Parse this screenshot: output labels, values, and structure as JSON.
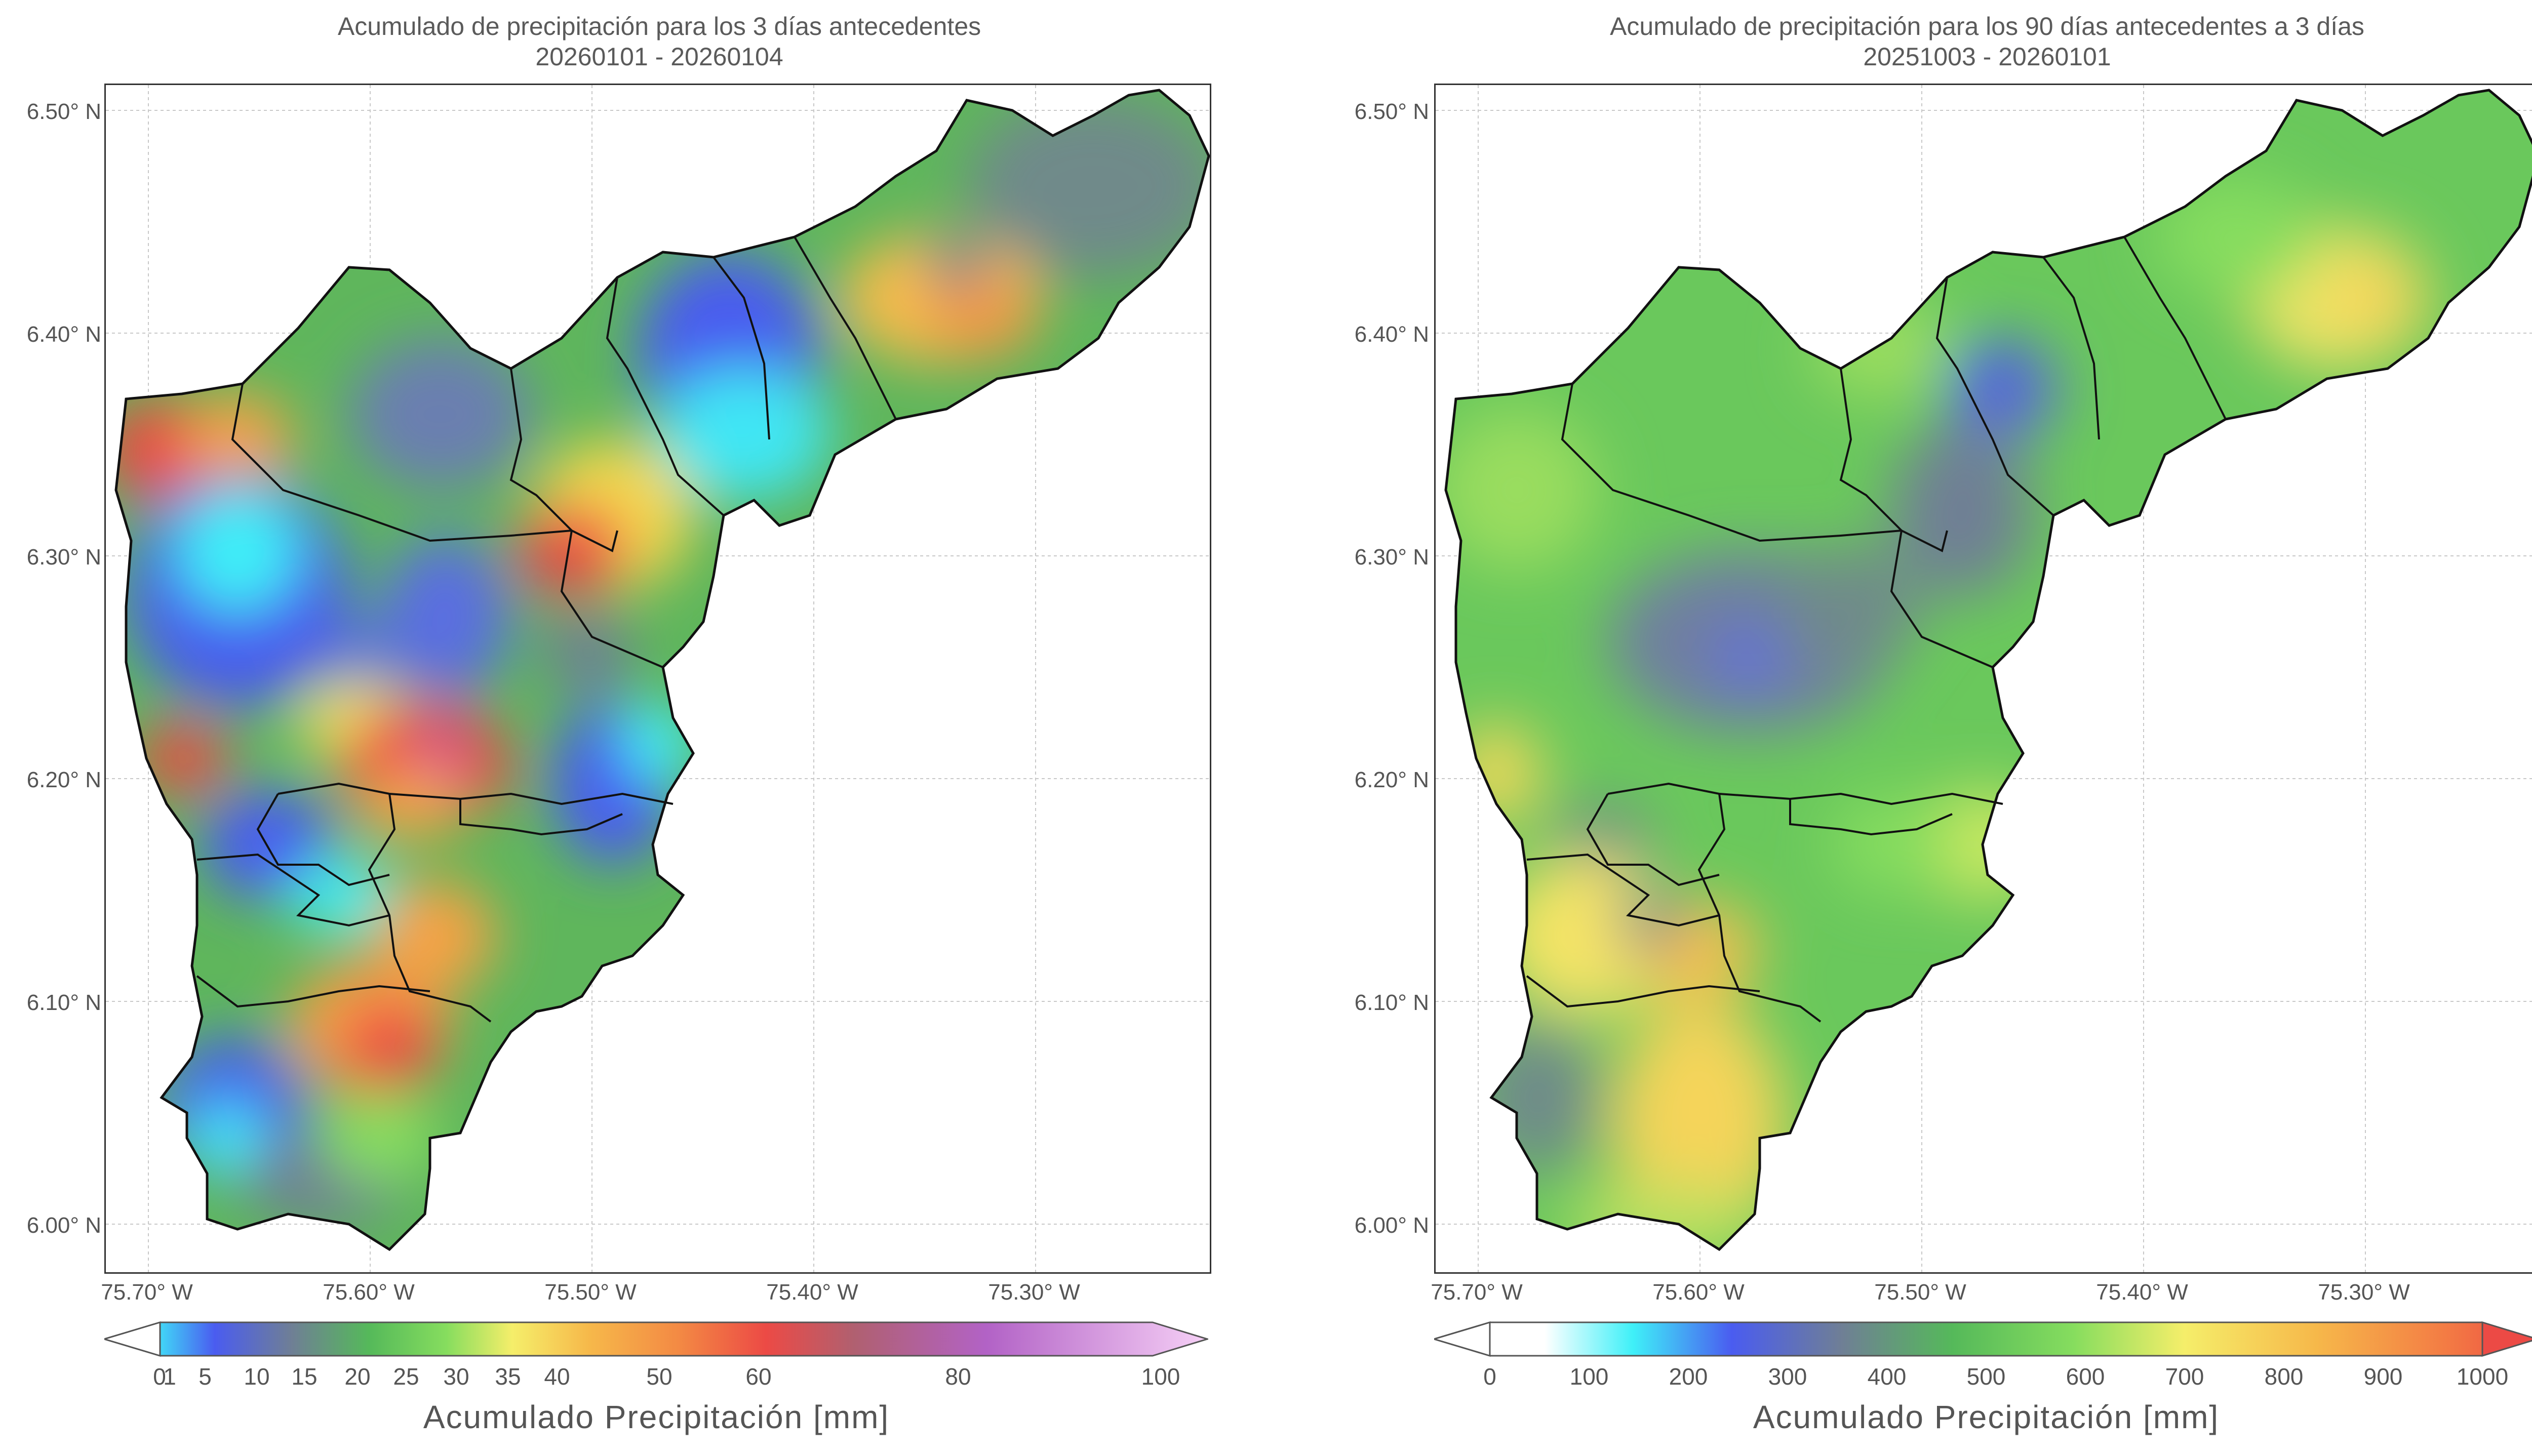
{
  "left": {
    "title_line1": "Acumulado de precipitación para los 3 días antecedentes",
    "title_line2": "20260101 - 20260104",
    "lat_labels": [
      "6.50° N",
      "6.40° N",
      "6.30° N",
      "6.20° N",
      "6.10° N",
      "6.00° N"
    ],
    "lon_labels": [
      "75.70° W",
      "75.60° W",
      "75.50° W",
      "75.40° W",
      "75.30° W"
    ],
    "colorbar": {
      "ticks": [
        "0",
        "1",
        "5",
        "10",
        "15",
        "20",
        "25",
        "30",
        "35",
        "40",
        "50",
        "60",
        "80",
        "100"
      ],
      "label": "Acumulado Precipitación [mm]"
    }
  },
  "right": {
    "title_line1": "Acumulado de precipitación para los 90 días antecedentes a 3 días",
    "title_line2": "20251003 - 20260101",
    "lat_labels": [
      "6.50° N",
      "6.40° N",
      "6.30° N",
      "6.20° N",
      "6.10° N",
      "6.00° N"
    ],
    "lon_labels": [
      "75.70° W",
      "75.60° W",
      "75.50° W",
      "75.40° W",
      "75.30° W"
    ],
    "colorbar": {
      "ticks": [
        "0",
        "100",
        "200",
        "300",
        "400",
        "500",
        "600",
        "700",
        "800",
        "900",
        "1000"
      ],
      "label": "Acumulado Precipitación [mm]"
    }
  },
  "colors": {
    "cyan": "#3ff0f8",
    "blue": "#4a5cf0",
    "slate": "#6f7f95",
    "green": "#55b95a",
    "lightgreen": "#86dd5e",
    "yellow": "#f5ee6a",
    "orange": "#f6a244",
    "red": "#ec4a45",
    "purple": "#b262c6",
    "pink": "#f6d0f6"
  }
}
